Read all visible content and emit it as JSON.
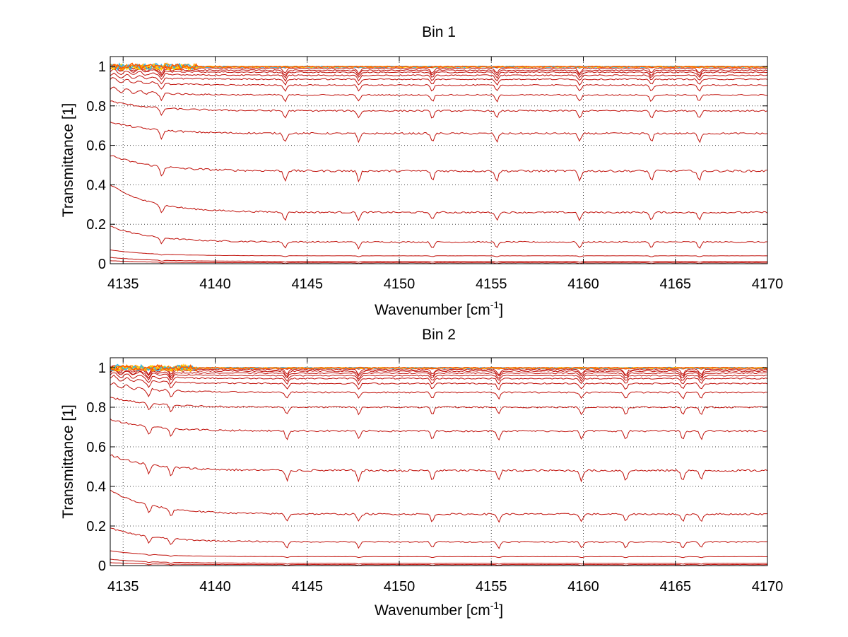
{
  "chart_data": [
    {
      "type": "line",
      "title": "Bin 1",
      "xlabel": "Wavenumber [cm",
      "xlabel_sup": "-1",
      "xlabel_suffix": "]",
      "ylabel": "Transmittance [1]",
      "xlim": [
        4134.3,
        4170
      ],
      "ylim": [
        0,
        1.05
      ],
      "xticks": [
        4135,
        4140,
        4145,
        4150,
        4155,
        4160,
        4165,
        4170
      ],
      "yticks": [
        0,
        0.2,
        0.4,
        0.6,
        0.8,
        1
      ],
      "ytick_labels": [
        "0",
        "0.2",
        "0.4",
        "0.6",
        "0.8",
        "1"
      ],
      "grid": true,
      "line_color": "#c0100a",
      "baselines": [
        0.005,
        0.012,
        0.04,
        0.11,
        0.26,
        0.47,
        0.66,
        0.775,
        0.855,
        0.905,
        0.935,
        0.955,
        0.97,
        0.98,
        0.99,
        0.997
      ],
      "left_rise": [
        0.01,
        0.02,
        0.03,
        0.08,
        0.14,
        0.08,
        0.06,
        0.05,
        0.03,
        0.03,
        0.02,
        0.02,
        0.02,
        0.01,
        0.01,
        0.0
      ],
      "dip_positions": [
        4137.1,
        4143.8,
        4147.8,
        4151.8,
        4155.3,
        4159.8,
        4163.7,
        4166.3
      ],
      "top_band_colors": [
        "#ff8c00",
        "#ffa500",
        "#ffd700",
        "#33b5e5",
        "#ff5a00"
      ]
    },
    {
      "type": "line",
      "title": "Bin 2",
      "xlabel": "Wavenumber [cm",
      "xlabel_sup": "-1",
      "xlabel_suffix": "]",
      "ylabel": "Transmittance [1]",
      "xlim": [
        4134.3,
        4170
      ],
      "ylim": [
        0,
        1.05
      ],
      "xticks": [
        4135,
        4140,
        4145,
        4150,
        4155,
        4160,
        4165,
        4170
      ],
      "yticks": [
        0,
        0.2,
        0.4,
        0.6,
        0.8,
        1
      ],
      "ytick_labels": [
        "0",
        "0.2",
        "0.4",
        "0.6",
        "0.8",
        "1"
      ],
      "grid": true,
      "line_color": "#c0100a",
      "baselines": [
        0.005,
        0.012,
        0.045,
        0.12,
        0.26,
        0.48,
        0.68,
        0.8,
        0.875,
        0.92,
        0.945,
        0.96,
        0.972,
        0.982,
        0.99,
        0.997
      ],
      "left_rise": [
        0.01,
        0.02,
        0.03,
        0.07,
        0.12,
        0.08,
        0.06,
        0.05,
        0.04,
        0.03,
        0.02,
        0.02,
        0.01,
        0.01,
        0.01,
        0.0
      ],
      "dip_positions": [
        4136.4,
        4137.6,
        4143.9,
        4147.8,
        4151.8,
        4155.4,
        4159.9,
        4162.3,
        4165.4,
        4166.4
      ],
      "top_band_colors": [
        "#ff8c00",
        "#ffa500",
        "#ffd700",
        "#33b5e5",
        "#ff5a00"
      ]
    }
  ]
}
